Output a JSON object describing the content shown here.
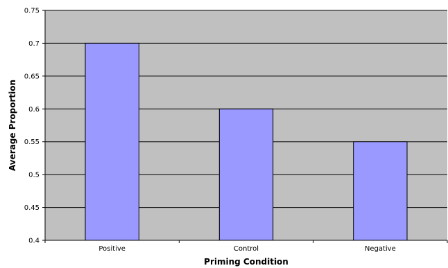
{
  "chart_data": {
    "type": "bar",
    "title": "",
    "xlabel": "Priming Condition",
    "ylabel": "Average Proportion",
    "categories": [
      "Positive",
      "Control",
      "Negative"
    ],
    "values": [
      0.7,
      0.6,
      0.55
    ],
    "ylim": [
      0.4,
      0.75
    ],
    "yticks": [
      "0.4",
      "0.45",
      "0.5",
      "0.55",
      "0.6",
      "0.65",
      "0.7",
      "0.75"
    ],
    "grid": true,
    "legend": "none",
    "colors": {
      "plot_background": "#c0c0c0",
      "bar_fill": "#9999ff",
      "bar_stroke": "#000000",
      "gridline": "#000000"
    }
  }
}
